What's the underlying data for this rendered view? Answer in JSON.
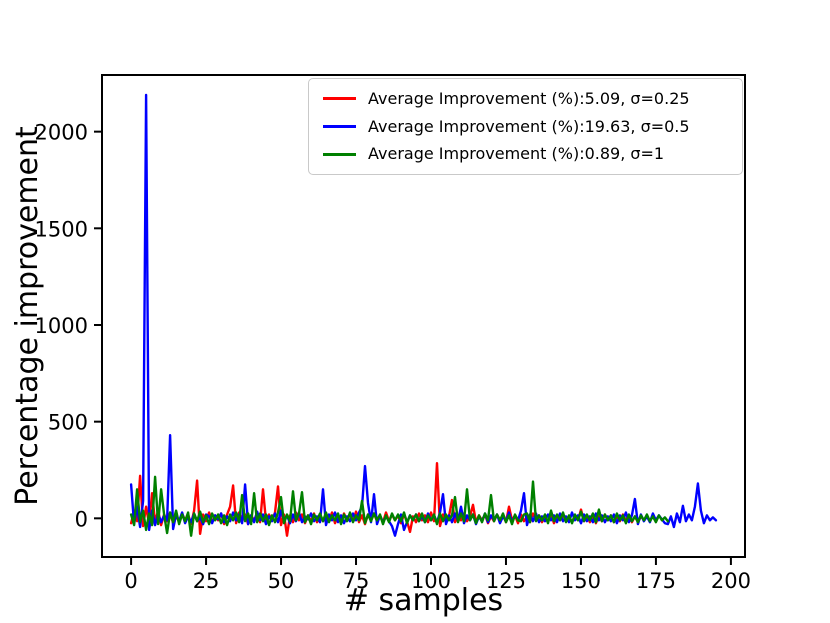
{
  "figure": {
    "xlabel": "# samples",
    "ylabel": "Percentage improvement"
  },
  "chart_data": {
    "type": "line",
    "title": "",
    "xlabel": "# samples",
    "ylabel": "Percentage improvement",
    "xlim": [
      -9.7,
      204.7
    ],
    "ylim": [
      -200,
      2293
    ],
    "xticks": [
      0,
      25,
      50,
      75,
      100,
      125,
      150,
      175,
      200
    ],
    "yticks": [
      0,
      500,
      1000,
      1500,
      2000
    ],
    "grid": false,
    "legend_position": "upper right",
    "line_colors": {
      "red": "#ff0000",
      "blue": "#0000ff",
      "green": "#008000"
    },
    "series": [
      {
        "name": "sigma-025",
        "label": "Average Improvement (%):5.09, σ=0.25",
        "average_improvement_pct": 5.09,
        "sigma": 0.25,
        "color": "#ff0000",
        "x_start": 0,
        "x_step": 1,
        "values": [
          -25,
          40,
          -15,
          220,
          -40,
          60,
          -30,
          130,
          -20,
          40,
          -35,
          20,
          -15,
          30,
          -25,
          15,
          -20,
          25,
          -10,
          20,
          -30,
          40,
          195,
          -80,
          20,
          -15,
          30,
          -20,
          15,
          -10,
          25,
          -30,
          20,
          60,
          170,
          -25,
          30,
          -15,
          20,
          -30,
          15,
          -10,
          25,
          -20,
          150,
          -15,
          20,
          -10,
          30,
          165,
          -35,
          20,
          -90,
          15,
          -20,
          30,
          -10,
          20,
          -25,
          15,
          -15,
          25,
          -20,
          10,
          -15,
          20,
          -10,
          30,
          -25,
          15,
          -20,
          25,
          -10,
          20,
          -15,
          35,
          -20,
          15,
          -30,
          20,
          -10,
          25,
          -15,
          10,
          -20,
          30,
          -15,
          20,
          -10,
          15,
          -25,
          20,
          -15,
          -70,
          10,
          -20,
          25,
          -10,
          15,
          -20,
          30,
          -15,
          285,
          -40,
          20,
          -15,
          10,
          95,
          -20,
          15,
          -10,
          25,
          -15,
          10,
          70,
          -20,
          15,
          -10,
          20,
          -25,
          10,
          -15,
          20,
          -10,
          15,
          -20,
          60,
          -10,
          15,
          -25,
          20,
          -15,
          10,
          -20,
          25,
          -10,
          15,
          -20,
          10,
          -15,
          20,
          -25,
          15,
          -10,
          20,
          -15,
          10,
          -20,
          15,
          -10,
          45,
          -15,
          10,
          -20,
          15,
          -25,
          10,
          -15,
          20,
          -10,
          15,
          -20,
          10,
          -15,
          20,
          -10,
          15,
          -20,
          10,
          -15,
          5
        ]
      },
      {
        "name": "sigma-05",
        "label": "Average Improvement (%):19.63, σ=0.5",
        "average_improvement_pct": 19.63,
        "sigma": 0.5,
        "color": "#0000ff",
        "x_start": 0,
        "x_step": 1,
        "values": [
          175,
          -30,
          60,
          -45,
          90,
          2190,
          -60,
          40,
          -35,
          25,
          -20,
          15,
          -10,
          430,
          -55,
          20,
          -15,
          30,
          -25,
          10,
          -20,
          25,
          -15,
          5,
          -30,
          20,
          10,
          -25,
          15,
          -5,
          25,
          -20,
          10,
          -15,
          30,
          -10,
          20,
          -25,
          175,
          -30,
          15,
          -20,
          35,
          -10,
          20,
          -30,
          10,
          -15,
          25,
          -20,
          40,
          -10,
          15,
          -25,
          20,
          -15,
          30,
          -20,
          10,
          -5,
          25,
          -15,
          10,
          -20,
          150,
          -35,
          20,
          -10,
          30,
          -20,
          15,
          -25,
          10,
          -15,
          25,
          -10,
          30,
          60,
          270,
          80,
          -20,
          125,
          -30,
          15,
          -20,
          10,
          -15,
          -40,
          -90,
          -30,
          20,
          -60,
          -20,
          15,
          -10,
          20,
          -15,
          10,
          -20,
          25,
          -10,
          15,
          -20,
          30,
          125,
          -30,
          15,
          -20,
          25,
          -15,
          60,
          -25,
          15,
          -10,
          20,
          -30,
          10,
          -15,
          25,
          -20,
          15,
          -10,
          20,
          -25,
          10,
          -15,
          30,
          -20,
          15,
          -10,
          40,
          130,
          -35,
          20,
          -15,
          25,
          -20,
          10,
          -15,
          20,
          -10,
          15,
          -20,
          25,
          -15,
          10,
          -20,
          30,
          -10,
          15,
          -25,
          20,
          -15,
          10,
          -20,
          25,
          -10,
          15,
          -20,
          10,
          -15,
          20,
          -25,
          15,
          -10,
          30,
          -20,
          15,
          100,
          -30,
          20,
          -15,
          10,
          -20,
          25,
          -10,
          15,
          -5,
          -25,
          -30,
          10,
          -45,
          25,
          -20,
          65,
          -15,
          20,
          -10,
          60,
          180,
          40,
          -25,
          15,
          -10,
          5,
          -10
        ]
      },
      {
        "name": "sigma-1",
        "label": "Average Improvement (%):0.89, σ=1",
        "average_improvement_pct": 0.89,
        "sigma": 1,
        "color": "#008000",
        "x_start": 0,
        "x_step": 1,
        "values": [
          20,
          -35,
          150,
          -20,
          40,
          -60,
          25,
          -35,
          215,
          -30,
          150,
          20,
          -76,
          30,
          -20,
          40,
          -30,
          20,
          -15,
          30,
          -90,
          25,
          -15,
          35,
          -20,
          15,
          -30,
          25,
          -10,
          20,
          -25,
          15,
          -35,
          20,
          -10,
          30,
          -20,
          120,
          -15,
          25,
          -30,
          130,
          -20,
          25,
          -15,
          20,
          -35,
          15,
          -20,
          30,
          110,
          -25,
          20,
          -15,
          140,
          -10,
          25,
          135,
          -20,
          15,
          -30,
          20,
          -10,
          25,
          -15,
          30,
          -20,
          15,
          -10,
          25,
          -30,
          20,
          -15,
          30,
          -20,
          15,
          -10,
          90,
          -25,
          20,
          -15,
          25,
          -10,
          20,
          -30,
          15,
          -20,
          25,
          -10,
          20,
          -15,
          30,
          -25,
          15,
          -10,
          20,
          -15,
          25,
          -20,
          15,
          -10,
          20,
          -30,
          25,
          -15,
          20,
          -10,
          15,
          110,
          -20,
          25,
          -15,
          150,
          -10,
          20,
          -25,
          15,
          -20,
          25,
          -10,
          120,
          -15,
          20,
          -10,
          25,
          -20,
          15,
          -30,
          20,
          -10,
          -15,
          20,
          25,
          -20,
          190,
          -15,
          15,
          -10,
          20,
          -25,
          40,
          -15,
          20,
          -10,
          30,
          -20,
          15,
          -25,
          20,
          -10,
          35,
          -15,
          20,
          -10,
          25,
          -20,
          45,
          -15,
          20,
          -10,
          15,
          -20,
          25,
          -10,
          15,
          -25,
          20,
          -15,
          10,
          -20,
          15,
          -10,
          20,
          -15,
          10,
          -20,
          15,
          -10,
          5,
          -15
        ]
      }
    ]
  }
}
